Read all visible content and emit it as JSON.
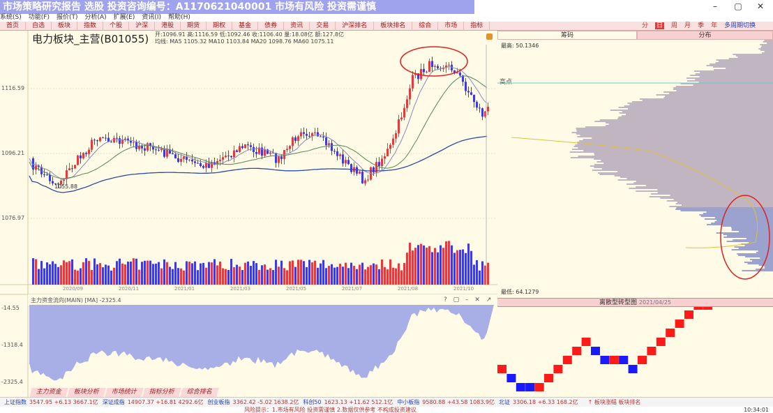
{
  "window": {
    "banner": "市场策略研究报告 选股 投资咨询编号：A1170621040001 市场有风险 投资需谨慎",
    "minimize": "–",
    "maximize": "▢",
    "close": "✕"
  },
  "menu": [
    "系统(S)",
    "功能(F)",
    "报价(T)",
    "分析(A)",
    "扩展(E)",
    "资讯(I)",
    "帮助(H)"
  ],
  "tabs": [
    "首页",
    "自选",
    "板块",
    "指数",
    "个股",
    "沪深",
    "港股",
    "期货",
    "期权",
    "基金",
    "债券",
    "资讯",
    "交易",
    "沪深排名",
    "板块排名",
    "综合",
    "市场",
    "指标"
  ],
  "periods": {
    "items": [
      "分",
      "日",
      "周",
      "月",
      "季",
      "年"
    ],
    "active": "日",
    "tool": "多周期切换"
  },
  "stock": {
    "name": "电力板块_主营(B01055)",
    "quote_line1": "开:1096.91 高:1116.59 低:1092.46 收:1106.40 量:18.08亿 额:127.8亿",
    "quote_line2": "均线: MA5 1105.32 MA10 1103.84 MA20 1098.76 MA60 1075.11"
  },
  "price_axis": [
    "1116.59",
    "1096.21",
    "1076.97"
  ],
  "dates": [
    "2020/09",
    "2020/11",
    "2021/01",
    "2021/03",
    "2021/05",
    "2021/07",
    "2021/08",
    "2021/10"
  ],
  "annotations": {
    "low_label": "1055.88",
    "high_label": "高点"
  },
  "indicator": {
    "title": "主力资金流向(MAIN) [MA] -2325.4",
    "axis": [
      "-14.55",
      "-1318.4",
      "-2325.4"
    ],
    "icons": [
      "?",
      "▢",
      "–",
      "✕",
      "↗"
    ]
  },
  "right_panel": {
    "tabs": [
      "筹码",
      "分布"
    ],
    "top_label": "最高: 50.1346",
    "bottom_label": "最低: 64.1279",
    "renko_title": "离散型砖型图",
    "renko_sub": "2021/04/25"
  },
  "bottom_tabs": [
    "主力资金",
    "板块分析",
    "市场统计",
    "指标分析",
    "综合排名"
  ],
  "status": [
    {
      "name": "上证指数",
      "val": "3547.95 +6.13 3667.1亿"
    },
    {
      "name": "深证成指",
      "val": "14907.37 +16.81 4292.6亿"
    },
    {
      "name": "创业板指",
      "val": "3362.42 -5.02 1638.2亿"
    },
    {
      "name": "科创50",
      "val": "1623.13 +11.62 512.1亿"
    },
    {
      "name": "中小板指",
      "val": "9580.88 +43.58 1083.9亿"
    },
    {
      "name": "北证",
      "val": "3306.18 +6.33 168.2亿"
    }
  ],
  "status_right": "↑ 板块涨幅 板块排名",
  "bottom_line": "风险提示：1.市场有风险 投资需谨慎 2.数据仅供参考 不构成投资建议",
  "time": "10:34:01",
  "colors": {
    "up": "#e83a3a",
    "down": "#3a3ae8",
    "ma1": "#8888bb",
    "ma2": "#558855",
    "ma3": "#2a4aa8",
    "fill": "#a8aee6",
    "renko_up": "#ff1a1a",
    "renko_down": "#1a1aff"
  }
}
